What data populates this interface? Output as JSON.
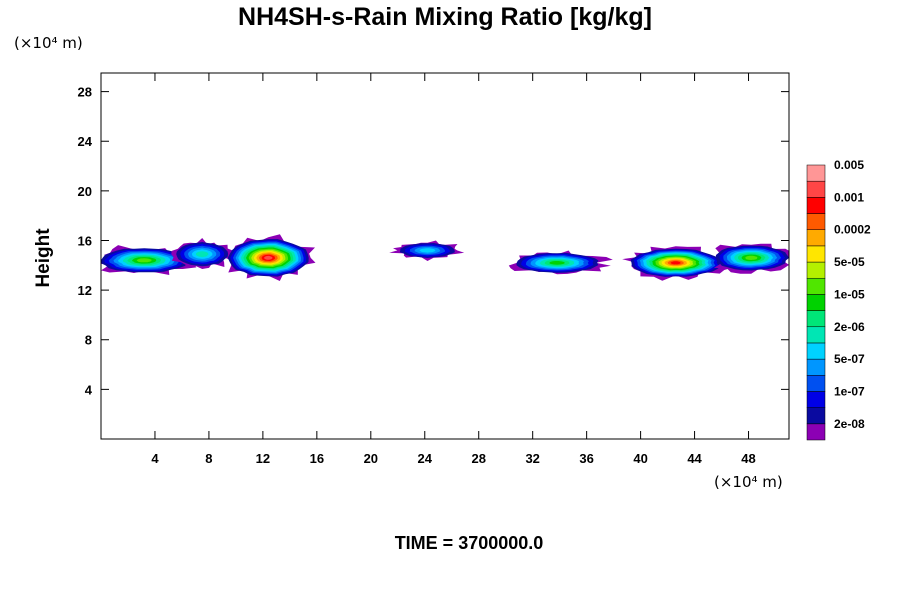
{
  "chart_data": {
    "type": "heatmap",
    "title": "NH4SH-s-Rain Mixing Ratio [kg/kg]",
    "xlabel": "",
    "ylabel": "Height",
    "x_unit": "(×10⁴ m)",
    "y_unit": "(×10⁴ m)",
    "xlim": [
      0,
      51
    ],
    "ylim": [
      0,
      29.5
    ],
    "x_ticks": [
      4,
      8,
      12,
      16,
      20,
      24,
      28,
      32,
      36,
      40,
      44,
      48
    ],
    "y_ticks": [
      4,
      8,
      12,
      16,
      20,
      24,
      28
    ],
    "time_label": "TIME = 3700000.0",
    "colorbar": {
      "colors": [
        "#8c00b4",
        "#0a0aa0",
        "#0000e6",
        "#0050f0",
        "#0096ff",
        "#00d2ff",
        "#00e6b4",
        "#00e678",
        "#00d200",
        "#50e600",
        "#b4f000",
        "#ffe600",
        "#ffaa00",
        "#ff5a00",
        "#ff0000",
        "#ff4646",
        "#ff9696"
      ],
      "labels": [
        "2e-08",
        "1e-07",
        "5e-07",
        "2e-06",
        "1e-05",
        "5e-05",
        "0.0002",
        "0.001",
        "0.005"
      ]
    },
    "blobs": [
      {
        "x": 3.2,
        "y": 14.4,
        "rx": 3.6,
        "ry": 1.1,
        "level": 9
      },
      {
        "x": 7.5,
        "y": 14.9,
        "rx": 2.2,
        "ry": 1.1,
        "level": 6
      },
      {
        "x": 12.4,
        "y": 14.6,
        "rx": 3.2,
        "ry": 1.6,
        "level": 15
      },
      {
        "x": 24.2,
        "y": 15.2,
        "rx": 2.4,
        "ry": 0.7,
        "level": 5
      },
      {
        "x": 33.8,
        "y": 14.2,
        "rx": 3.4,
        "ry": 0.9,
        "level": 8
      },
      {
        "x": 42.6,
        "y": 14.2,
        "rx": 3.6,
        "ry": 1.2,
        "level": 14
      },
      {
        "x": 48.2,
        "y": 14.6,
        "rx": 3.0,
        "ry": 1.1,
        "level": 9
      }
    ]
  }
}
